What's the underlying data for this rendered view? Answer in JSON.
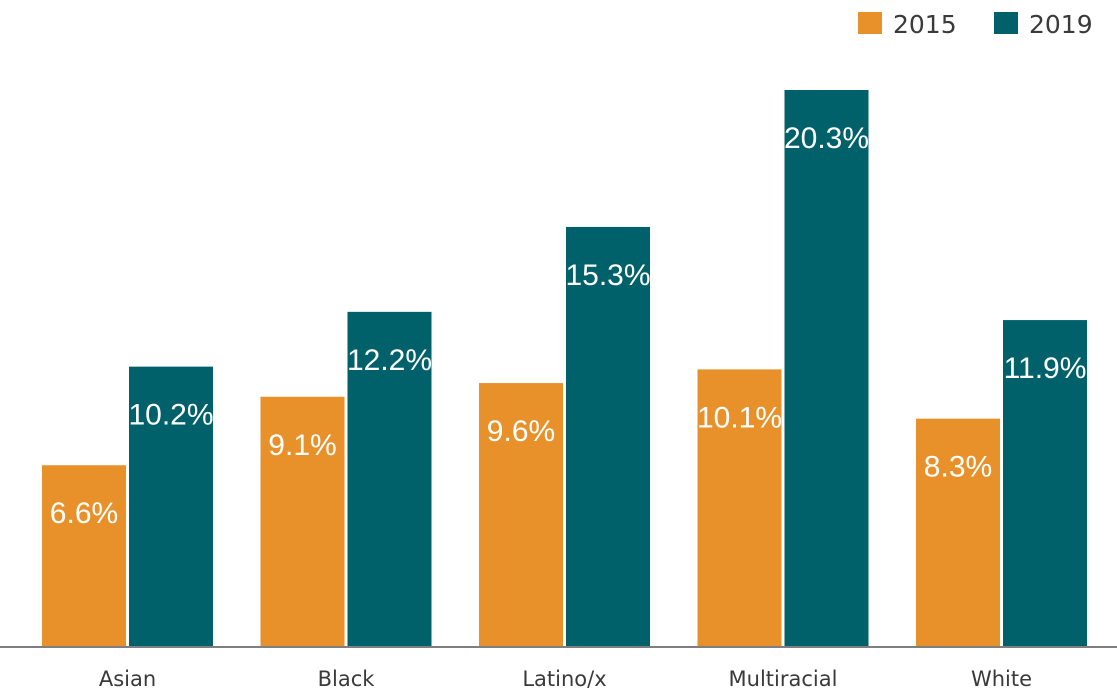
{
  "chart_data": {
    "type": "bar",
    "categories": [
      "Asian",
      "Black",
      "Latino/x",
      "Multiracial",
      "White"
    ],
    "series": [
      {
        "name": "2015",
        "color": "#e8912a",
        "values": [
          6.6,
          9.1,
          9.6,
          10.1,
          8.3
        ],
        "labels": [
          "6.6%",
          "9.1%",
          "9.6%",
          "10.1%",
          "8.3%"
        ]
      },
      {
        "name": "2019",
        "color": "#00616a",
        "values": [
          10.2,
          12.2,
          15.3,
          20.3,
          11.9
        ],
        "labels": [
          "10.2%",
          "12.2%",
          "15.3%",
          "20.3%",
          "11.9%"
        ]
      }
    ],
    "title": "",
    "xlabel": "",
    "ylabel": "",
    "ylim": [
      0,
      20.3
    ],
    "grid": false,
    "legend_position": "top-right",
    "axis_color": "#7f7f7f"
  }
}
